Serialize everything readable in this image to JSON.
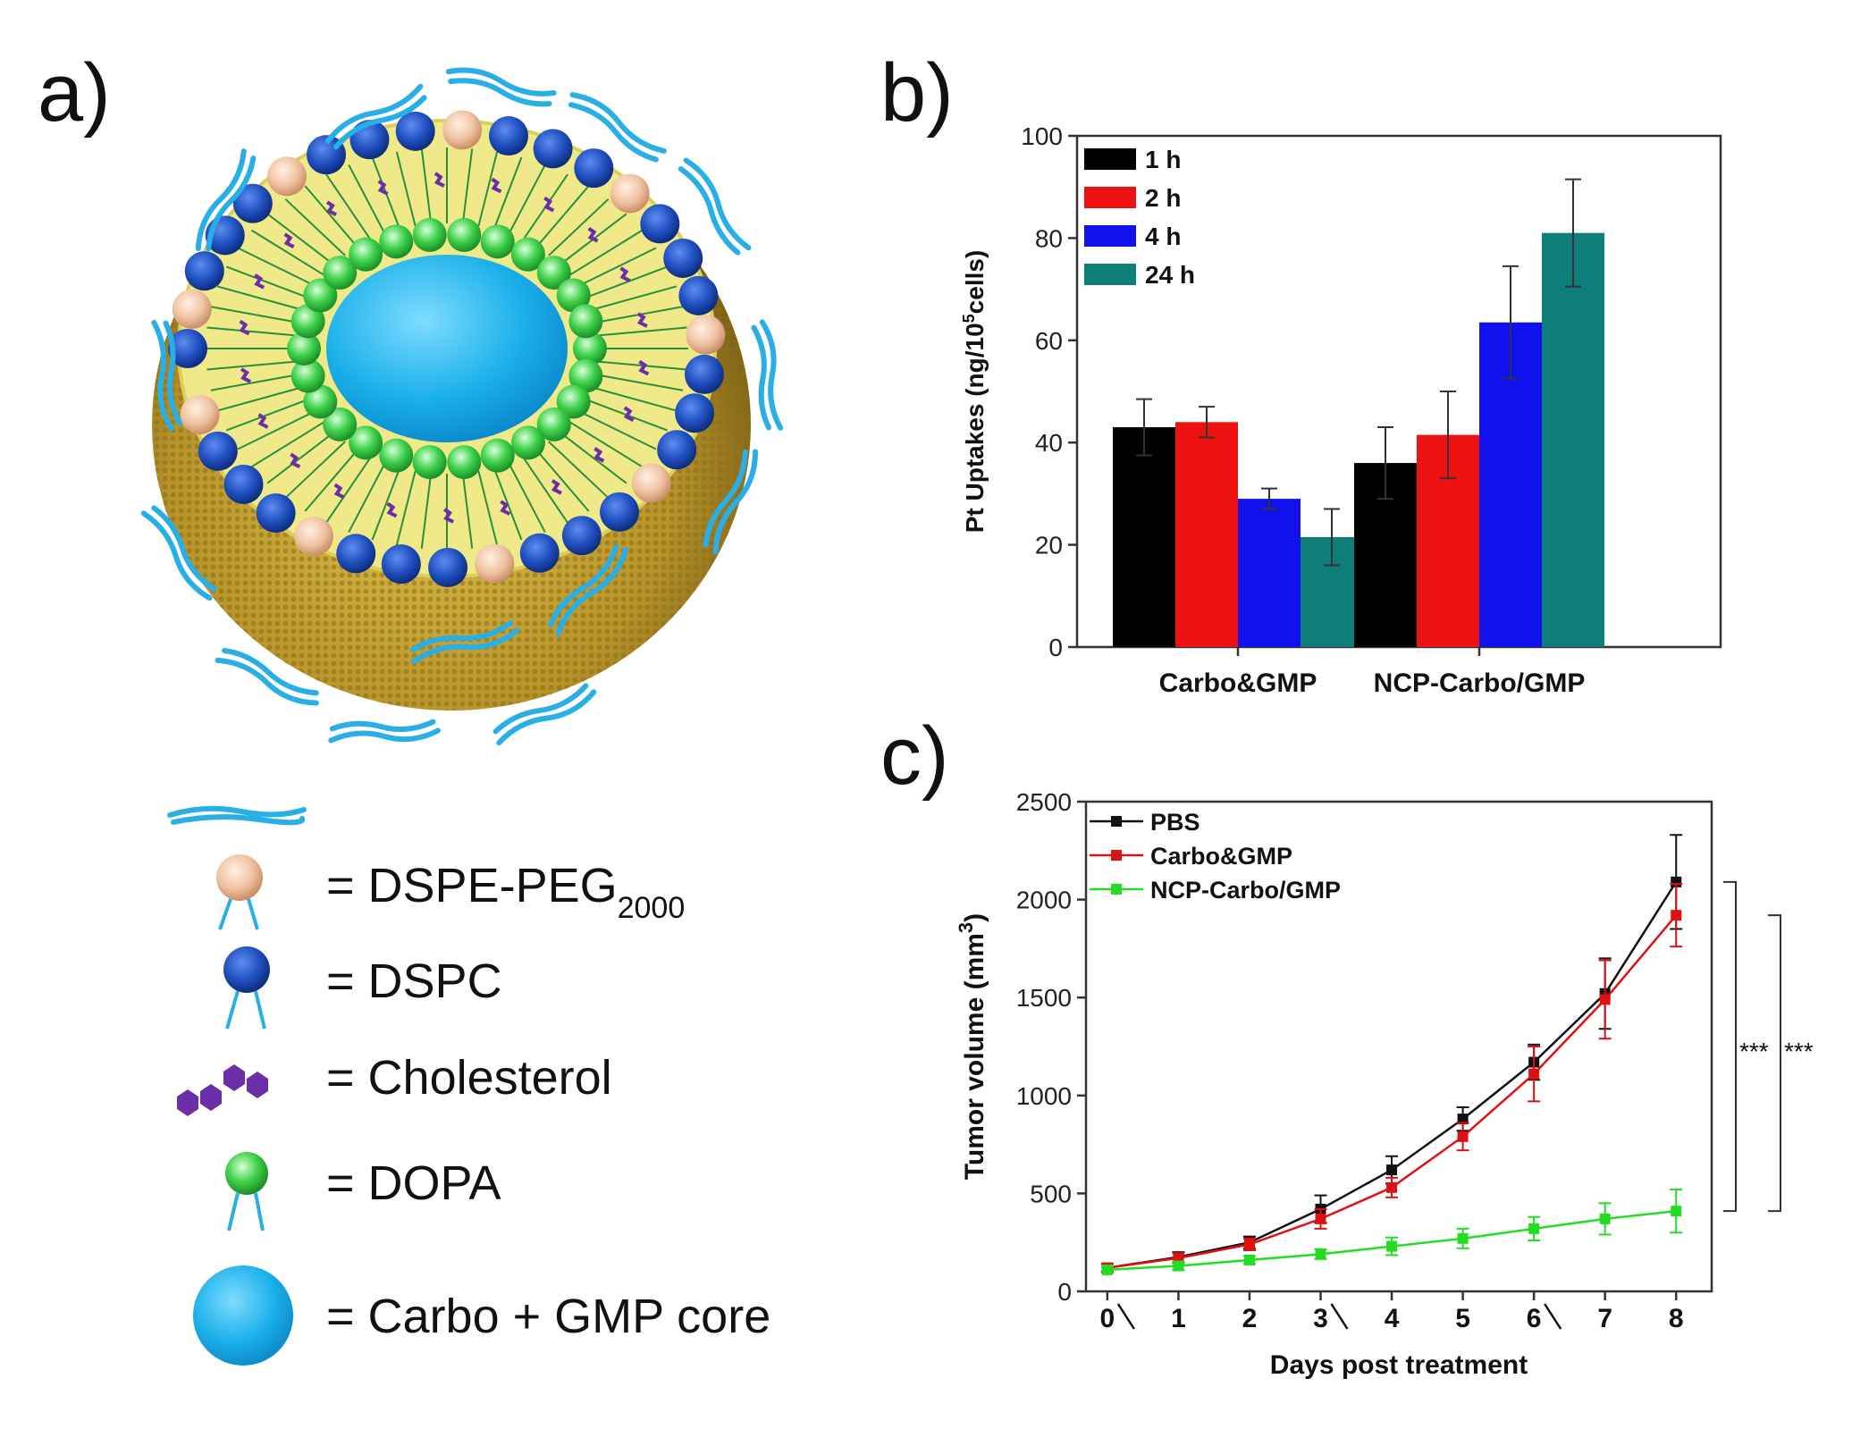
{
  "panels": {
    "a": "a)",
    "b": "b)",
    "c": "c)"
  },
  "legend_a": [
    {
      "symbol": "dspe-peg",
      "prefix": "= DSPE-PEG",
      "sub": "2000"
    },
    {
      "symbol": "dspc",
      "prefix": "= DSPC",
      "sub": ""
    },
    {
      "symbol": "cholesterol",
      "prefix": "= Cholesterol",
      "sub": ""
    },
    {
      "symbol": "dopa",
      "prefix": "= DOPA",
      "sub": ""
    },
    {
      "symbol": "core",
      "prefix": "= Carbo + GMP core",
      "sub": ""
    }
  ],
  "colors": {
    "peg": "#29aee6",
    "dspe_head": "#f0c2a0",
    "dspc_head": "#1f4fbf",
    "cholesterol": "#6a2ea8",
    "dopa": "#3fd14a",
    "core": "#1bb3ea",
    "shell": "#c9a93a",
    "bilayer": "#efe98a"
  },
  "chart_data": [
    {
      "type": "bar",
      "title": "",
      "xlabel": "",
      "ylabel": "Pt Uptakes (ng/10⁵cells)",
      "ylabel_main": "Pt Uptakes (ng/10",
      "ylabel_sup": "5",
      "ylabel_tail": "cells)",
      "ylim": [
        0,
        100
      ],
      "yticks": [
        "0",
        "20",
        "40",
        "60",
        "80",
        "100"
      ],
      "categories": [
        "Carbo&GMP",
        "NCP-Carbo/GMP"
      ],
      "legend_position": "top-left",
      "series": [
        {
          "name": "1 h",
          "color": "#000000",
          "values": [
            43,
            36
          ],
          "errors": [
            5.5,
            7
          ]
        },
        {
          "name": "2 h",
          "color": "#ee1111",
          "values": [
            44,
            41.5
          ],
          "errors": [
            3,
            8.5
          ]
        },
        {
          "name": "4 h",
          "color": "#1111ee",
          "values": [
            29,
            63.5
          ],
          "errors": [
            2,
            11
          ]
        },
        {
          "name": "24 h",
          "color": "#0e7e78",
          "values": [
            21.5,
            81
          ],
          "errors": [
            5.5,
            10.5
          ]
        }
      ]
    },
    {
      "type": "line",
      "title": "",
      "xlabel": "Days post treatment",
      "ylabel": "Tumor volume (mm³)",
      "ylabel_main": "Tumor volume (mm",
      "ylabel_sup": "3",
      "ylabel_tail": ")",
      "x": [
        0,
        1,
        2,
        3,
        4,
        5,
        6,
        7,
        8
      ],
      "xticks": [
        "0",
        "1",
        "2",
        "3",
        "4",
        "5",
        "6",
        "7",
        "8"
      ],
      "ylim": [
        0,
        2500
      ],
      "yticks": [
        "0",
        "500",
        "1000",
        "1500",
        "2000",
        "2500"
      ],
      "treatment_days": [
        0,
        3,
        6
      ],
      "legend_position": "top-left",
      "series": [
        {
          "name": "PBS",
          "color": "#111111",
          "values": [
            120,
            175,
            250,
            420,
            620,
            880,
            1170,
            1520,
            2090
          ],
          "errors": [
            20,
            25,
            30,
            70,
            70,
            60,
            90,
            180,
            240
          ]
        },
        {
          "name": "Carbo&GMP",
          "color": "#dd1111",
          "values": [
            120,
            170,
            240,
            370,
            530,
            790,
            1110,
            1490,
            1920
          ],
          "errors": [
            20,
            25,
            30,
            50,
            50,
            70,
            140,
            200,
            160
          ]
        },
        {
          "name": "NCP-Carbo/GMP",
          "color": "#22dd22",
          "values": [
            110,
            130,
            160,
            190,
            230,
            270,
            320,
            370,
            410
          ],
          "errors": [
            15,
            20,
            20,
            25,
            45,
            50,
            60,
            80,
            110
          ]
        }
      ],
      "significance": [
        "***",
        "***"
      ]
    }
  ]
}
